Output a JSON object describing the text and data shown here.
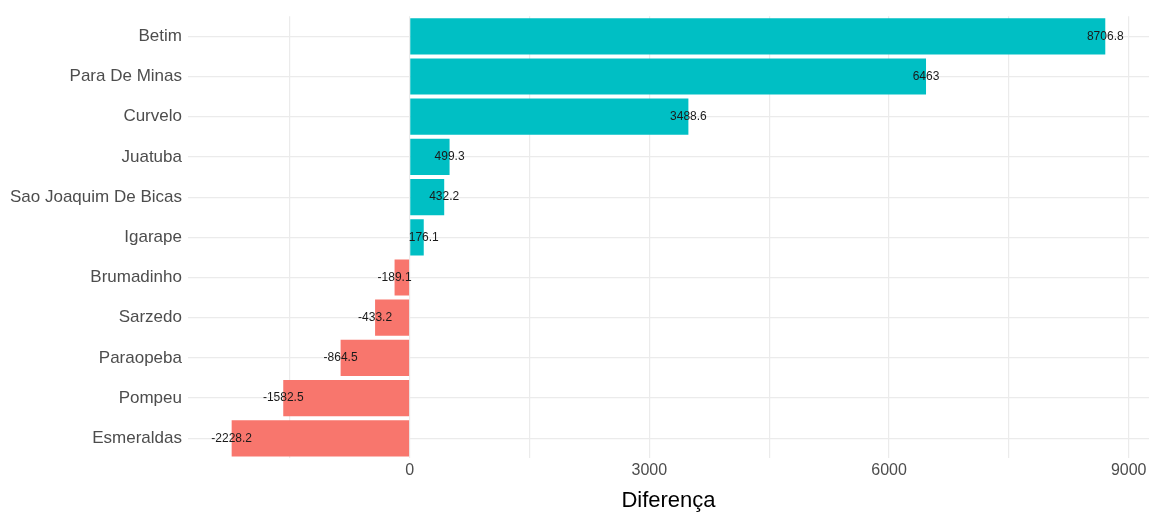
{
  "chart_data": {
    "type": "bar",
    "orientation": "horizontal",
    "xlabel": "Diferença",
    "categories": [
      "Betim",
      "Para De Minas",
      "Curvelo",
      "Juatuba",
      "Sao Joaquim De Bicas",
      "Igarape",
      "Brumadinho",
      "Sarzedo",
      "Paraopeba",
      "Pompeu",
      "Esmeraldas"
    ],
    "values": [
      8706.8,
      6463,
      3488.6,
      499.3,
      432.2,
      176.1,
      -189.1,
      -433.2,
      -864.5,
      -1582.5,
      -2228.2
    ],
    "colors": [
      "#00bfc4",
      "#00bfc4",
      "#00bfc4",
      "#00bfc4",
      "#00bfc4",
      "#00bfc4",
      "#f8766d",
      "#f8766d",
      "#f8766d",
      "#f8766d",
      "#f8766d"
    ],
    "xlim": [
      -2775,
      9254
    ],
    "xticks": [
      {
        "value": -1500,
        "label": null
      },
      0,
      {
        "value": 1500,
        "label": null
      },
      3000,
      {
        "value": 4500,
        "label": null
      },
      6000,
      {
        "value": 7500,
        "label": null
      },
      9000
    ],
    "grid": true,
    "data_labels": true,
    "legend": false
  }
}
